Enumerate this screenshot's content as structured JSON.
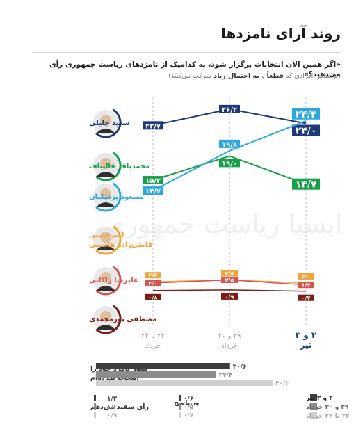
{
  "title": "روند آرای نامزدها",
  "question": "«اگر همین الان انتخابات برگزار شود، به کدامیک از نامزدهای ریاست جمهوری رأی می‌دهید؟»",
  "subtitle": {
    "prefix": "(براساس افرادی که ",
    "bold1": "قطعاً",
    "mid": " و ",
    "bold2": "به احتمال زیاد",
    "suffix": " شرکت می‌کنند)"
  },
  "watermark": "ایسپا ریاست جمهوری",
  "chart_data": {
    "type": "line",
    "x": [
      "۲۲ تا ۲۴ خرداد",
      "۲۹ و ۳۰ خرداد",
      "۲ و ۳ تیر"
    ],
    "series": [
      {
        "name": "سعید جلیلی",
        "color": "#1f3a7a",
        "values": [
          23.7,
          26.2,
          24.0
        ],
        "labels": [
          "۲۳/۷",
          "۲۶/۲",
          "۲۴/۰"
        ]
      },
      {
        "name": "محمدباقر قالیباف",
        "color": "#17a04a",
        "values": [
          15.3,
          19.0,
          14.7
        ],
        "labels": [
          "۱۵/۳",
          "۱۹/۰",
          "۱۴/۷"
        ]
      },
      {
        "name": "مسعود پزشکیان",
        "color": "#2aa8df",
        "values": [
          13.7,
          19.8,
          24.4
        ],
        "labels": [
          "۱۳/۷",
          "۱۹/۸",
          "۲۴/۴"
        ]
      },
      {
        "name": "امیرحسین قاضی‌زاده هاشمی",
        "color": "#f2a33a",
        "values": [
          2.2,
          2.5,
          2.0
        ],
        "labels": [
          "۲/۲",
          "۲/۵",
          "۲/۰"
        ]
      },
      {
        "name": "علیرضا زاکانی",
        "color": "#d9534f",
        "values": [
          2.0,
          2.5,
          1.7
        ],
        "labels": [
          "۲/۰",
          "۲/۵",
          "۱/۷"
        ]
      },
      {
        "name": "مصطفی پورمحمدی",
        "color": "#7a1c14",
        "values": [
          0.8,
          0.9,
          0.7
        ],
        "labels": [
          "۰/۸",
          "۰/۹",
          "۰/۷"
        ]
      }
    ],
    "ylim": [
      0,
      28
    ],
    "grid": false
  },
  "candidates": [
    {
      "name_line1": "سعید جلیلی",
      "name_line2": "",
      "color": "#1f3a7a"
    },
    {
      "name_line1": "محمدباقر قالیباف",
      "name_line2": "",
      "color": "#17a04a"
    },
    {
      "name_line1": "مسعود پزشکیان",
      "name_line2": "",
      "color": "#2aa8df"
    },
    {
      "name_line1": "امیرحسین",
      "name_line2": "قاضی‌زاده هاشمی",
      "color": "#f2a33a"
    },
    {
      "name_line1": "علیرضا زاکانی",
      "name_line2": "",
      "color": "#d9534f"
    },
    {
      "name_line1": "مصطفی پورمحمدی",
      "name_line2": "",
      "color": "#7a1c14"
    }
  ],
  "x_axis": [
    {
      "line1": "۲۲ تا ۲۴",
      "line2": "خرداد"
    },
    {
      "line1": "۲۹ و ۳۰",
      "line2": "خرداد"
    },
    {
      "line1": "۲ و ۳",
      "line2": "تیر"
    }
  ],
  "undecided": {
    "label_line1": "هنوز نامزد خود را",
    "label_line2": "انتخاب نکرده‌ام",
    "values": [
      30.6,
      27.4,
      40.3
    ],
    "labels": [
      "۳۰/۶",
      "۲۷/۴",
      "۴۰/۳"
    ]
  },
  "blank_vote": {
    "label": "رأی سفید می‌دهم",
    "labels": [
      "۱/۲",
      "۱/۶",
      "۰/۹"
    ]
  },
  "no_answer": {
    "label": "بی‌پاسخ",
    "labels": [
      "۰/۶",
      "۰/۵",
      "۰/۷"
    ]
  },
  "legend": [
    "۲ و ۳ تیر",
    "۲۹ و ۳۰ خرداد",
    "۲۲ تا ۲۴ خرداد"
  ],
  "legend_colors": [
    "#3d3d3d",
    "#8c8c8c",
    "#cfcfcf"
  ]
}
